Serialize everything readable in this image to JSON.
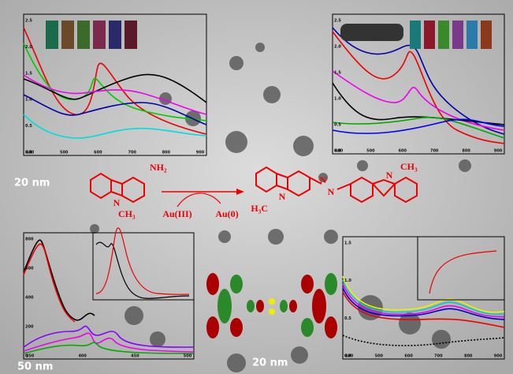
{
  "panels": {
    "top_left": {
      "xticks": [
        "400",
        "500",
        "600",
        "700",
        "800",
        "900"
      ],
      "yticks": [
        "0.0",
        "0.5",
        "1.0",
        "1.5",
        "2.0",
        "2.5"
      ]
    },
    "top_right": {
      "xticks": [
        "400",
        "500",
        "600",
        "700",
        "800",
        "900"
      ],
      "yticks": [
        "0.0",
        "0.5",
        "1.0",
        "1.5",
        "2.0",
        "2.5"
      ]
    },
    "bottom_left": {
      "xticks": [
        "350",
        "400",
        "450",
        "500"
      ],
      "yticks": [
        "0",
        "200",
        "400",
        "600",
        "800"
      ]
    },
    "bottom_right": {
      "xticks": [
        "400",
        "500",
        "600",
        "700",
        "800",
        "900"
      ],
      "yticks": [
        "0.0",
        "0.5",
        "1.0",
        "1.5"
      ]
    }
  },
  "scale_bars": [
    "20 nm",
    "50 nm",
    "20 nm"
  ],
  "scheme": {
    "amine": "NH₂",
    "ring_n_left": "N",
    "methyl_left": "CH₃",
    "reagent": "Au(III)",
    "product_metal": "Au(0)",
    "azo_n1": "N",
    "azo_n2": "N",
    "ring_n_right1": "N",
    "methyl_right1": "H₃C",
    "ring_n_right2": "N",
    "methyl_right2": "CH₃"
  }
}
